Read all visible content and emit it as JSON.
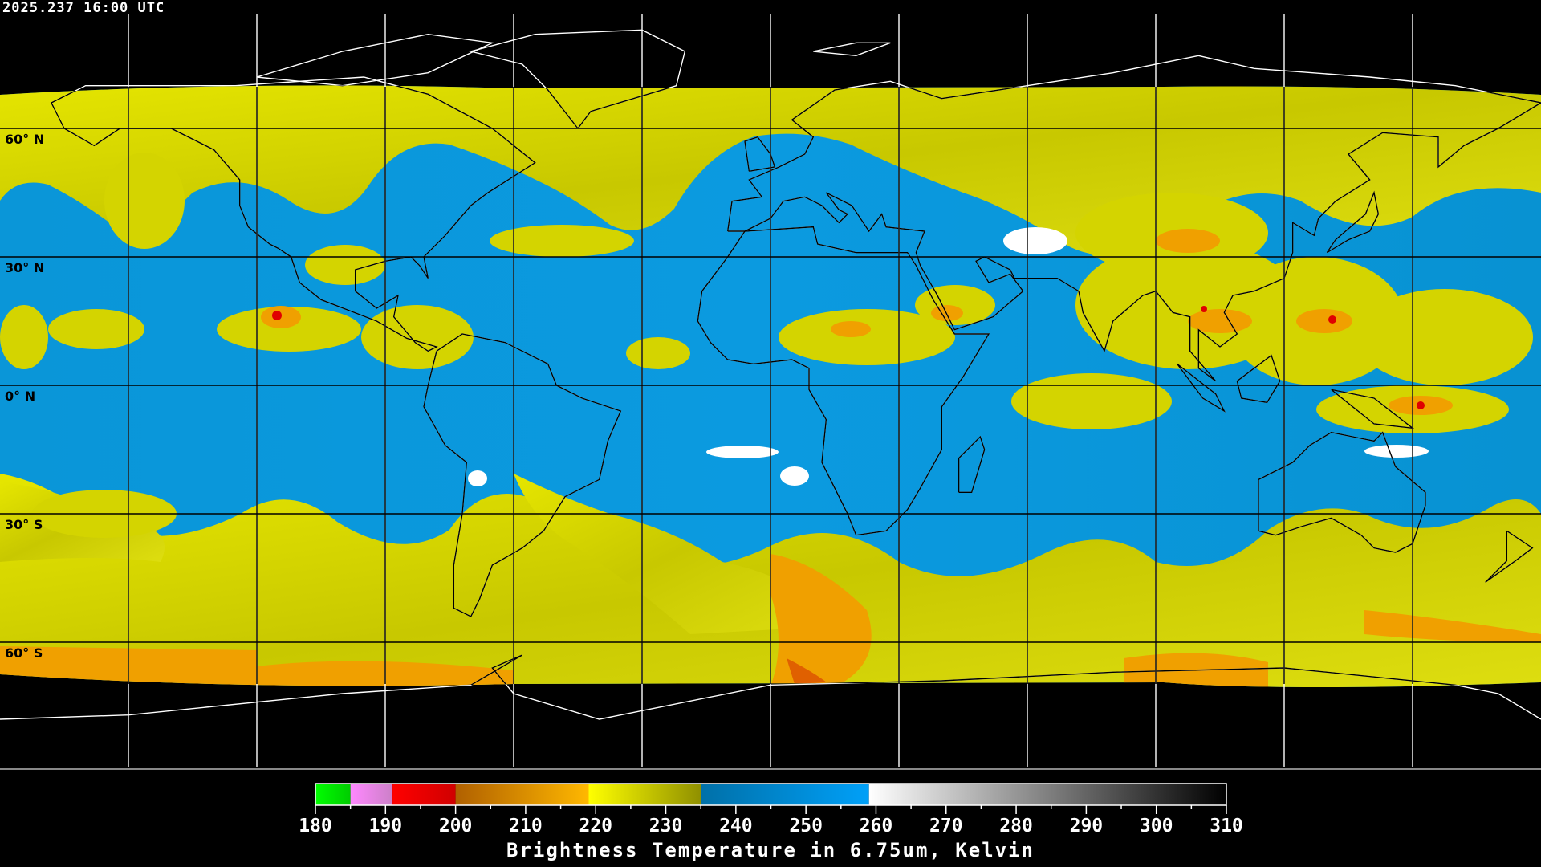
{
  "header": {
    "timestamp": "2025.237 16:00 UTC"
  },
  "map": {
    "projection": "equirectangular",
    "grid_spacing_deg": 30,
    "lat_labels": [
      "60° N",
      "30° N",
      "0° N",
      "30° S",
      "60° S"
    ],
    "colors": {
      "grid_in_data": "#000000",
      "grid_outside": "#ffffff",
      "coastline_in_data": "#000000",
      "coastline_outside": "#ffffff"
    }
  },
  "colorbar": {
    "title": "Brightness Temperature in 6.75um, Kelvin",
    "min": 180,
    "max": 310,
    "tick_labels": [
      "180",
      "190",
      "200",
      "210",
      "220",
      "230",
      "240",
      "250",
      "260",
      "270",
      "280",
      "290",
      "300",
      "310"
    ],
    "segments": [
      {
        "from": 180,
        "to": 185,
        "start": "#00ff00",
        "end": "#00cc00"
      },
      {
        "from": 185,
        "to": 191,
        "start": "#ff88ff",
        "end": "#cc80c8"
      },
      {
        "from": 191,
        "to": 200,
        "start": "#ff0000",
        "end": "#d00000"
      },
      {
        "from": 200,
        "to": 219,
        "start": "#b06000",
        "end": "#ffb800"
      },
      {
        "from": 219,
        "to": 235,
        "start": "#ffff00",
        "end": "#909000"
      },
      {
        "from": 235,
        "to": 259,
        "start": "#0070a8",
        "end": "#00a0f8"
      },
      {
        "from": 259,
        "to": 310,
        "start": "#ffffff",
        "end": "#000000"
      }
    ]
  }
}
